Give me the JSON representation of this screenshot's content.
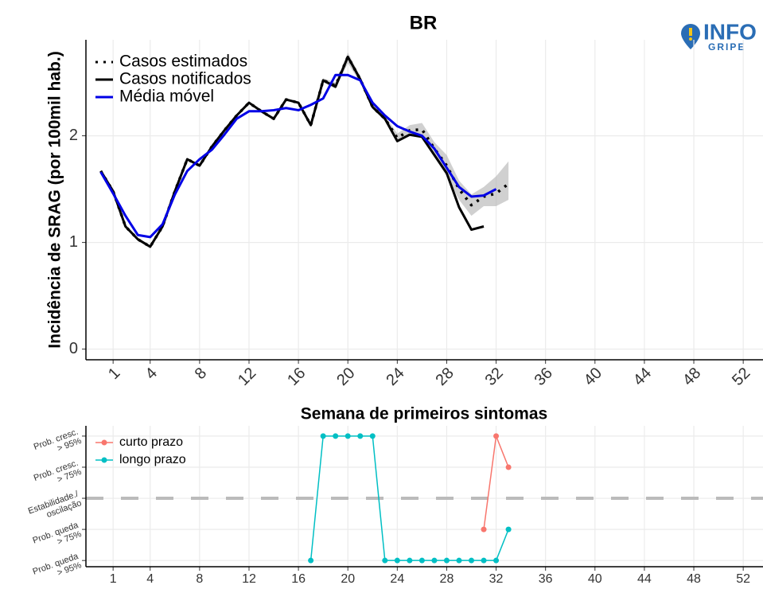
{
  "logo": {
    "text": "INFO",
    "subtext": "GRIPE"
  },
  "chart_data": [
    {
      "type": "line",
      "title": "BR",
      "y_label": "Incidência de SRAG (por 100mil hab.)",
      "x_label": "Semana de primeiros sintomas",
      "xlim": [
        -1.2,
        53.6
      ],
      "xticks": [
        1,
        4,
        8,
        12,
        16,
        20,
        24,
        28,
        32,
        36,
        40,
        44,
        48,
        52
      ],
      "ylim": [
        -0.1,
        2.9
      ],
      "yticks": [
        0,
        1,
        2
      ],
      "grid": true,
      "legend": "top-left",
      "series": [
        {
          "name": "Casos estimados",
          "color": "#000000",
          "style": "dotted",
          "x": [
            0,
            1,
            2,
            3,
            4,
            5,
            6,
            7,
            8,
            9,
            10,
            11,
            12,
            13,
            14,
            15,
            16,
            17,
            18,
            19,
            20,
            21,
            22,
            23,
            24,
            25,
            26,
            27,
            28,
            29,
            30,
            31,
            32,
            33
          ],
          "values": [
            1.67,
            1.48,
            1.15,
            1.03,
            0.96,
            1.15,
            1.48,
            1.78,
            1.72,
            1.9,
            2.05,
            2.19,
            2.31,
            2.23,
            2.16,
            2.34,
            2.31,
            2.1,
            2.52,
            2.47,
            2.74,
            2.53,
            2.27,
            2.16,
            1.98,
            2.05,
            2.06,
            1.88,
            1.72,
            1.5,
            1.35,
            1.43,
            1.46,
            1.55
          ]
        },
        {
          "name": "Casos notificados",
          "color": "#000000",
          "style": "solid",
          "x": [
            0,
            1,
            2,
            3,
            4,
            5,
            6,
            7,
            8,
            9,
            10,
            11,
            12,
            13,
            14,
            15,
            16,
            17,
            18,
            19,
            20,
            21,
            22,
            23,
            24,
            25,
            26,
            27,
            28,
            29,
            30,
            31
          ],
          "values": [
            1.67,
            1.48,
            1.15,
            1.03,
            0.96,
            1.15,
            1.48,
            1.78,
            1.72,
            1.9,
            2.05,
            2.19,
            2.31,
            2.23,
            2.16,
            2.34,
            2.31,
            2.1,
            2.52,
            2.46,
            2.74,
            2.53,
            2.27,
            2.16,
            1.95,
            2.01,
            1.99,
            1.82,
            1.65,
            1.33,
            1.12,
            1.15
          ]
        },
        {
          "name": "Média móvel",
          "color": "#0000e6",
          "style": "solid",
          "x": [
            0,
            1,
            2,
            3,
            4,
            5,
            6,
            7,
            8,
            9,
            10,
            11,
            12,
            13,
            14,
            15,
            16,
            17,
            18,
            19,
            20,
            21,
            22,
            23,
            24,
            25,
            26,
            27,
            28,
            29,
            30,
            31,
            32
          ],
          "values": [
            1.66,
            1.46,
            1.25,
            1.07,
            1.05,
            1.17,
            1.45,
            1.67,
            1.78,
            1.87,
            2.01,
            2.16,
            2.23,
            2.23,
            2.24,
            2.26,
            2.24,
            2.29,
            2.35,
            2.57,
            2.57,
            2.52,
            2.31,
            2.19,
            2.09,
            2.04,
            2.0,
            1.88,
            1.7,
            1.52,
            1.43,
            1.44,
            1.5
          ]
        }
      ],
      "interval": {
        "color": "#b0b0b0",
        "x": [
          18,
          19,
          20,
          21,
          22,
          23,
          24,
          25,
          26,
          27,
          28,
          29,
          30,
          31,
          32,
          33
        ],
        "lower": [
          2.5,
          2.44,
          2.68,
          2.5,
          2.25,
          2.14,
          1.94,
          2.0,
          1.98,
          1.8,
          1.62,
          1.4,
          1.25,
          1.34,
          1.34,
          1.4
        ],
        "upper": [
          2.54,
          2.5,
          2.78,
          2.56,
          2.3,
          2.19,
          2.02,
          2.1,
          2.12,
          1.94,
          1.82,
          1.58,
          1.45,
          1.52,
          1.62,
          1.76
        ]
      }
    },
    {
      "type": "line",
      "xlim": [
        -1.2,
        53.6
      ],
      "xticks": [
        1,
        4,
        8,
        12,
        16,
        20,
        24,
        28,
        32,
        36,
        40,
        44,
        48,
        52
      ],
      "ylim": [
        -2.2,
        2.33
      ],
      "yticks": [
        {
          "value": 2,
          "label": "Prob. cresc.\n> 95%"
        },
        {
          "value": 1,
          "label": "Prob. cresc.\n> 75%"
        },
        {
          "value": 0,
          "label": "Estabilidade./\noscilação"
        },
        {
          "value": -1,
          "label": "Prob. queda\n> 75%"
        },
        {
          "value": -2,
          "label": "Prob. queda\n> 95%"
        }
      ],
      "grid": true,
      "legend": "top-left",
      "reference_line": 0,
      "series": [
        {
          "name": "curto prazo",
          "color": "#f8766d",
          "style": "solid",
          "x": [
            31,
            32,
            33
          ],
          "values": [
            -1,
            2,
            1
          ]
        },
        {
          "name": "longo prazo",
          "color": "#00bfc4",
          "style": "solid",
          "x": [
            17,
            18,
            19,
            20,
            21,
            22,
            23,
            24,
            25,
            26,
            27,
            28,
            29,
            30,
            31,
            32,
            33
          ],
          "values": [
            -2,
            2,
            2,
            2,
            2,
            2,
            -2,
            -2,
            -2,
            -2,
            -2,
            -2,
            -2,
            -2,
            -2,
            -2,
            -1
          ]
        }
      ]
    }
  ]
}
